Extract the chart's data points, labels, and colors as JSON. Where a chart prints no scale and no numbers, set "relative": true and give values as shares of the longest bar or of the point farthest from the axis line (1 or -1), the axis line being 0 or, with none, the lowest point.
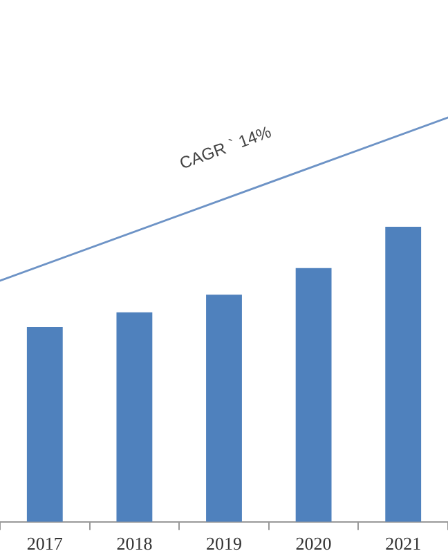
{
  "chart_data": {
    "type": "bar",
    "relative": true,
    "categories": [
      "2017",
      "2018",
      "2019",
      "2020",
      "2021"
    ],
    "values": [
      0.66,
      0.71,
      0.77,
      0.86,
      1
    ],
    "color": "#4f81bd",
    "annotations": [
      "CAGR ` 14%"
    ]
  }
}
